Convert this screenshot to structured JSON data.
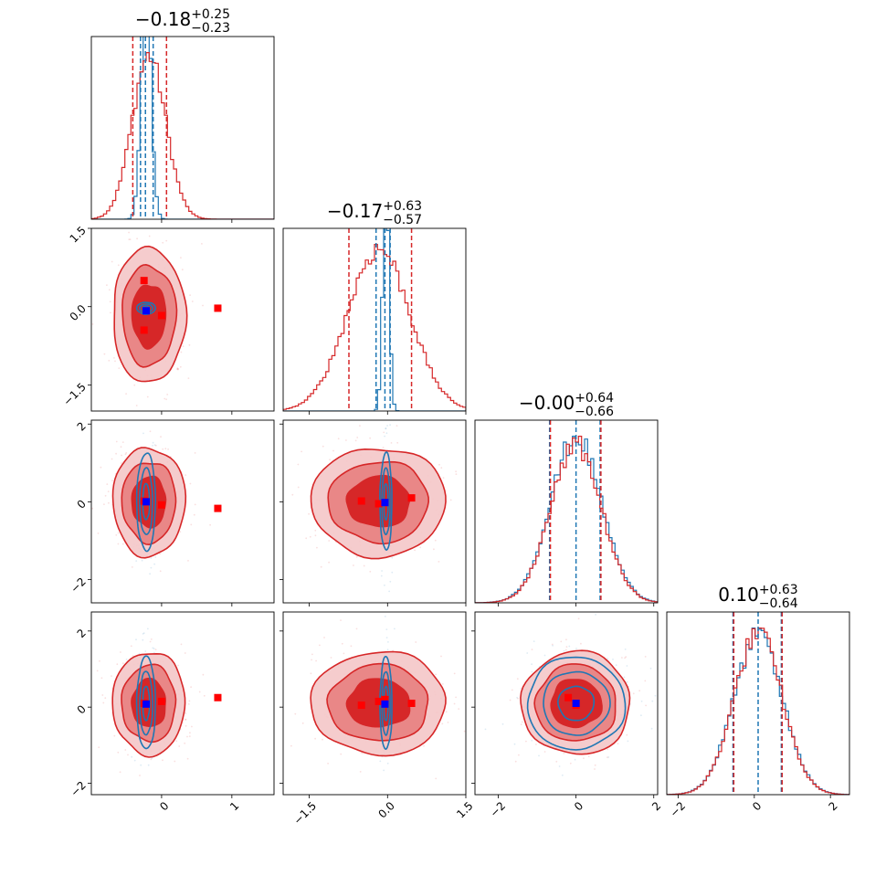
{
  "figure": {
    "type": "corner-plot"
  },
  "colors": {
    "red": "#d62728",
    "red_mid": "#e87f80",
    "red_light": "#f4c7c8",
    "blue": "#1f77b4",
    "marker_red": "#ff0000",
    "marker_blue": "#0000ff"
  },
  "chart_data": {
    "type": "corner",
    "n_params": 4,
    "series": [
      {
        "color_name": "red",
        "role": "broad posterior"
      },
      {
        "color_name": "blue",
        "role": "narrow posterior"
      }
    ],
    "diagonal": [
      {
        "title_main": "−0.18",
        "title_sup": "+0.25",
        "title_sub": "−0.23",
        "median": -0.18,
        "lo": -0.41,
        "hi": 0.07,
        "blue_quantiles": [
          -0.3,
          -0.23,
          -0.12
        ],
        "range": [
          -1.0,
          1.6
        ]
      },
      {
        "title_main": "−0.17",
        "title_sup": "+0.63",
        "title_sub": "−0.57",
        "median": -0.17,
        "lo": -0.74,
        "hi": 0.46,
        "blue_quantiles": [
          -0.22,
          -0.05,
          0.05
        ],
        "range": [
          -2.0,
          1.5
        ]
      },
      {
        "title_main": "−0.00",
        "title_sup": "+0.64",
        "title_sub": "−0.66",
        "median": 0.0,
        "lo": -0.66,
        "hi": 0.64,
        "blue_quantiles": [
          -0.68,
          0.0,
          0.62
        ],
        "range": [
          -2.6,
          2.1
        ]
      },
      {
        "title_main": "0.10",
        "title_sup": "+0.63",
        "title_sub": "−0.64",
        "median": 0.1,
        "lo": -0.54,
        "hi": 0.73,
        "blue_quantiles": [
          -0.56,
          0.1,
          0.71
        ],
        "range": [
          -2.3,
          2.5
        ]
      }
    ],
    "axis_ticks": [
      {
        "values": [
          0,
          1
        ],
        "labels": [
          "0",
          "1"
        ]
      },
      {
        "values": [
          -1.5,
          0.0,
          1.5
        ],
        "labels": [
          "−1.5",
          "0.0",
          "1.5"
        ]
      },
      {
        "values": [
          -2,
          0,
          2
        ],
        "labels": [
          "−2",
          "0",
          "2"
        ]
      },
      {
        "values": [
          -2,
          0,
          2
        ],
        "labels": [
          "−2",
          "0",
          "2"
        ]
      }
    ],
    "markers": {
      "red": [
        [
          1,
          0,
          -0.25,
          0.5
        ],
        [
          1,
          0,
          -0.25,
          -0.45
        ],
        [
          1,
          0,
          0.0,
          -0.17
        ],
        [
          1,
          0,
          0.8,
          -0.03
        ],
        [
          2,
          0,
          -0.25,
          0.02
        ],
        [
          2,
          0,
          0.0,
          -0.08
        ],
        [
          2,
          0,
          0.8,
          -0.17
        ],
        [
          2,
          1,
          -0.5,
          0.02
        ],
        [
          2,
          1,
          -0.17,
          -0.05
        ],
        [
          2,
          1,
          0.46,
          0.1
        ],
        [
          3,
          0,
          -0.25,
          0.1
        ],
        [
          3,
          0,
          0.0,
          0.15
        ],
        [
          3,
          0,
          0.8,
          0.25
        ],
        [
          3,
          1,
          -0.5,
          0.05
        ],
        [
          3,
          1,
          -0.17,
          0.15
        ],
        [
          3,
          1,
          -0.05,
          0.2
        ],
        [
          3,
          1,
          0.46,
          0.1
        ],
        [
          3,
          2,
          -0.2,
          0.25
        ],
        [
          3,
          2,
          0.0,
          0.05
        ]
      ],
      "blue": [
        [
          1,
          0,
          -0.22,
          -0.08
        ],
        [
          2,
          0,
          -0.22,
          0.0
        ],
        [
          2,
          1,
          -0.05,
          -0.02
        ],
        [
          3,
          0,
          -0.22,
          0.08
        ],
        [
          3,
          1,
          -0.05,
          0.08
        ],
        [
          3,
          2,
          0.0,
          0.1
        ]
      ]
    }
  }
}
